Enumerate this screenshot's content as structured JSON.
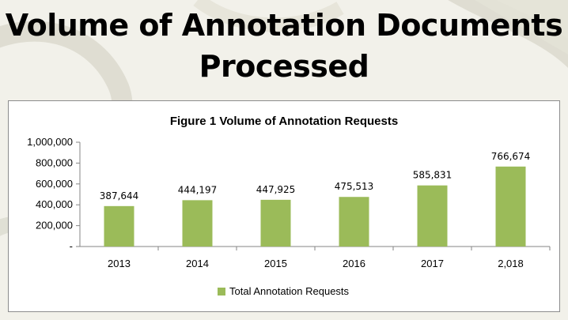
{
  "slide": {
    "title_line1": "Volume of Annotation Documents",
    "title_line2": "Processed"
  },
  "colors": {
    "bar": "#9bbb59",
    "axis": "#868686",
    "background": "#f2f1ea",
    "decor": "#d9d8cc"
  },
  "chart_data": {
    "type": "bar",
    "title": "Figure 1 Volume of Annotation Requests",
    "categories": [
      "2013",
      "2014",
      "2015",
      "2016",
      "2017",
      "2,018"
    ],
    "series": [
      {
        "name": "Total Annotation Requests",
        "values": [
          387644,
          444197,
          447925,
          475513,
          585831,
          766674
        ],
        "data_labels": [
          "387,644",
          "444,197",
          "447,925",
          "475,513",
          "585,831",
          "766,674"
        ]
      }
    ],
    "y_ticks": [
      "-",
      "200,000",
      "400,000",
      "600,000",
      "800,000",
      "1,000,000"
    ],
    "xlabel": "",
    "ylabel": "",
    "ylim": [
      0,
      1000000
    ],
    "grid": false,
    "legend": "bottom"
  }
}
